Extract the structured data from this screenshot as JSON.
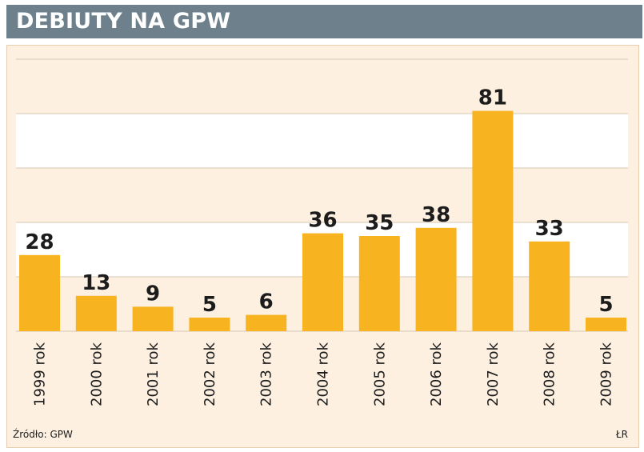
{
  "title": "DEBIUTY NA GPW",
  "source": "Źródło: GPW",
  "author": "ŁR",
  "colors": {
    "title_bar": "#6e808c",
    "bar": "#f7b320",
    "band_light": "#ffffff",
    "band_tint": "#fdf0e1",
    "grid": "#d8c7b2"
  },
  "chart_data": {
    "type": "bar",
    "title": "DEBIUTY NA GPW",
    "xlabel": "",
    "ylabel": "",
    "categories": [
      "1999 rok",
      "2000 rok",
      "2001 rok",
      "2002 rok",
      "2003 rok",
      "2004 rok",
      "2005 rok",
      "2006 rok",
      "2007 rok",
      "2008 rok",
      "2009 rok"
    ],
    "values": [
      28,
      13,
      9,
      5,
      6,
      36,
      35,
      38,
      81,
      33,
      5
    ],
    "ylim": [
      0,
      100
    ],
    "grid_step": 20,
    "grid": true,
    "legend": "none"
  }
}
